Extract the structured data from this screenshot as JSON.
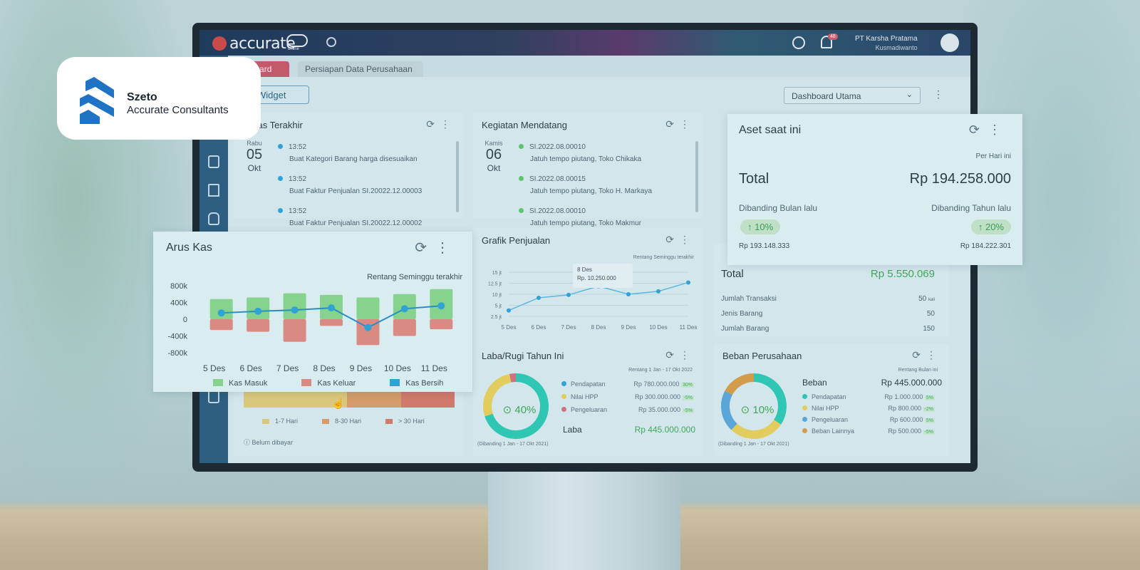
{
  "brand": {
    "name": "Szeto",
    "subtitle": "Accurate Consultants"
  },
  "app": {
    "logo_text": "accurate",
    "logo_sub": "online",
    "company_name": "PT Karsha Pratama",
    "user_name": "Kusmadiwanto",
    "notif_count": "48"
  },
  "tabs": [
    {
      "label": "hboard"
    },
    {
      "label": "Persiapan Data Perusahaan"
    }
  ],
  "toolbar": {
    "widget_label": "Widget",
    "dashboard_select": "Dashboard Utama"
  },
  "aktivitas": {
    "title": "tivitas Terakhir",
    "day": "Rabu",
    "date": "05",
    "month": "Okt",
    "items": [
      {
        "time": "13:52",
        "desc": "Buat Kategori Barang harga disesuaikan"
      },
      {
        "time": "13:52",
        "desc": "Buat Faktur Penjualan SI.20022.12.00003"
      },
      {
        "time": "13:52",
        "desc": "Buat Faktur Penjualan SI.20022.12.00002"
      }
    ]
  },
  "kegiatan": {
    "title": "Kegiatan Mendatang",
    "day": "Kamis",
    "date": "06",
    "month": "Okt",
    "items": [
      {
        "code": "SI.2022.08.00010",
        "desc": "Jatuh tempo piutang, Toko Chikaka"
      },
      {
        "code": "SI.2022.08.00015",
        "desc": "Jatuh tempo piutang, Toko H. Markaya"
      },
      {
        "code": "SI.2022.08.00010",
        "desc": "Jatuh tempo piutang, Toko Makmur"
      }
    ]
  },
  "aset": {
    "title": "Aset saat ini",
    "period": "Per Hari ini",
    "total_label": "Total",
    "total_value": "Rp 194.258.000",
    "bulan_label": "Dibanding Bulan lalu",
    "bulan_pct": "↑ 10%",
    "bulan_value": "Rp 193.148.333",
    "tahun_label": "Dibanding Tahun lalu",
    "tahun_pct": "↑ 20%",
    "tahun_value": "Rp 184.222.301"
  },
  "penjualan_summary": {
    "total_label": "Total",
    "total_value": "Rp 5.550.069",
    "rows": [
      {
        "label": "Jumlah Transaksi",
        "value": "50",
        "unit": "kali"
      },
      {
        "label": "Jenis Barang",
        "value": "50",
        "unit": ""
      },
      {
        "label": "Jumlah Barang",
        "value": "150",
        "unit": ""
      }
    ]
  },
  "grafik": {
    "title": "Grafik Penjualan",
    "range": "Rentang Seminggu terakhir",
    "tooltip_date": "8 Des",
    "tooltip_value": "Rp. 10.250.000"
  },
  "aruskas": {
    "title": "Arus Kas",
    "range": "Rentang Seminggu terakhir",
    "legend": [
      "Kas Masuk",
      "Kas Keluar",
      "Kas Bersih"
    ]
  },
  "umur": {
    "legend": [
      "1-7 Hari",
      "8-30 Hari",
      "> 30 Hari"
    ],
    "note": "Belum dibayar"
  },
  "labarugi": {
    "title": "Laba/Rugi Tahun Ini",
    "range": "Rentang 1 Jan - 17 Okt 2022",
    "pct": "40%",
    "rows": [
      {
        "label": "Pendapatan",
        "value": "Rp 780.000.000",
        "change": "30%"
      },
      {
        "label": "Nilai HPP",
        "value": "Rp 300.000.000",
        "change": "-5%"
      },
      {
        "label": "Pengeluaran",
        "value": "Rp 35.000.000",
        "change": "-5%"
      }
    ],
    "laba_label": "Laba",
    "laba_value": "Rp 445.000.000",
    "compare": "(Dibanding 1 Jan - 17 Okt 2021)"
  },
  "beban": {
    "title": "Beban Perusahaan",
    "range": "Rentang Bulan ini",
    "pct": "10%",
    "beban_label": "Beban",
    "beban_value": "Rp 445.000.000",
    "rows": [
      {
        "label": "Pendapatan",
        "value": "Rp 1.000.000",
        "change": "5%"
      },
      {
        "label": "Nilai HPP",
        "value": "Rp 800.000",
        "change": "-2%"
      },
      {
        "label": "Pengeluaran",
        "value": "Rp 600.000",
        "change": "5%"
      },
      {
        "label": "Beban Lainnya",
        "value": "Rp 500.000",
        "change": "-5%"
      }
    ],
    "compare": "(Dibanding 1 Jan - 17 Okt 2021)"
  },
  "chart_data": [
    {
      "type": "bar",
      "title": "Arus Kas",
      "categories": [
        "5 Des",
        "6 Des",
        "7 Des",
        "8 Des",
        "9 Des",
        "10 Des",
        "11 Des"
      ],
      "yticks": [
        "800k",
        "400k",
        "0",
        "-400k",
        "-800k"
      ],
      "ylim": [
        -800000,
        800000
      ],
      "series": [
        {
          "name": "Kas Masuk",
          "values": [
            480000,
            520000,
            620000,
            580000,
            520000,
            600000,
            720000
          ]
        },
        {
          "name": "Kas Keluar",
          "values": [
            -260000,
            -300000,
            -540000,
            -160000,
            -620000,
            -400000,
            -240000
          ]
        },
        {
          "name": "Kas Bersih",
          "values": [
            150000,
            190000,
            220000,
            270000,
            -200000,
            250000,
            320000
          ]
        }
      ]
    },
    {
      "type": "line",
      "title": "Grafik Penjualan",
      "categories": [
        "5 Des",
        "6 Des",
        "7 Des",
        "8 Des",
        "9 Des",
        "10 Des",
        "11 Des"
      ],
      "yticks": [
        "15 jt",
        "12.5 jt",
        "10 jt",
        "5 jt",
        "2.5 jt"
      ],
      "ylim": [
        0,
        15
      ],
      "values": [
        2.0,
        6.3,
        7.3,
        10.25,
        7.5,
        8.5,
        11.5
      ]
    },
    {
      "type": "pie",
      "title": "Laba/Rugi Tahun Ini",
      "labels": [
        "Pendapatan",
        "Nilai HPP",
        "Pengeluaran"
      ],
      "values": [
        780000000,
        300000000,
        35000000
      ]
    },
    {
      "type": "pie",
      "title": "Beban Perusahaan",
      "labels": [
        "Pendapatan",
        "Nilai HPP",
        "Pengeluaran",
        "Beban Lainnya"
      ],
      "values": [
        1000000,
        800000,
        600000,
        500000
      ]
    }
  ],
  "colors": {
    "kas_masuk": "#86d38e",
    "kas_keluar": "#d98a83",
    "kas_bersih": "#2fa3d6",
    "green_text": "#3ea85a"
  }
}
